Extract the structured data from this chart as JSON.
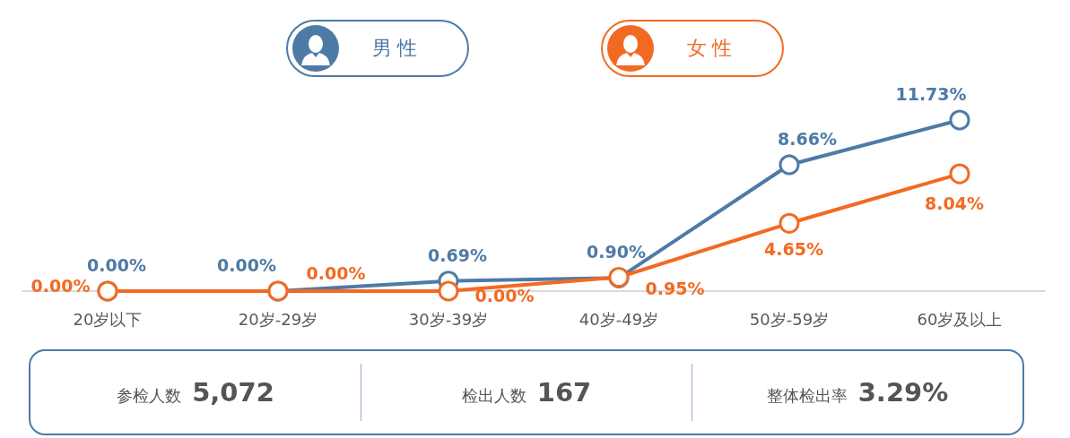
{
  "chart_data": {
    "type": "line",
    "categories": [
      "20岁以下",
      "20岁-29岁",
      "30岁-39岁",
      "40岁-49岁",
      "50岁-59岁",
      "60岁及以上"
    ],
    "series": [
      {
        "name": "男性",
        "color": "#4e7aa6",
        "values": [
          0,
          0,
          0.69,
          0.9,
          8.66,
          11.73
        ],
        "value_labels": [
          "0.00%",
          "0.00%",
          "0.69%",
          "0.90%",
          "8.66%",
          "11.73%"
        ]
      },
      {
        "name": "女性",
        "color": "#f26a22",
        "values": [
          0,
          0,
          0,
          0.95,
          4.65,
          8.04
        ],
        "value_labels": [
          "0.00%",
          "0.00%",
          "0.00%",
          "0.95%",
          "4.65%",
          "8.04%"
        ]
      }
    ],
    "marker": "circle",
    "legend": "top",
    "annotations": [
      "参检人数",
      "5,072",
      "检出人数",
      "167",
      "整体检出率",
      "3.29%"
    ]
  }
}
